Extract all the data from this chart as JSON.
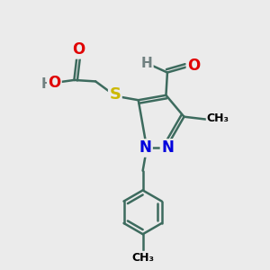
{
  "bg_color": "#ebebeb",
  "bond_color": "#3d6b5e",
  "bond_width": 1.8,
  "dbo": 0.12,
  "atom_colors": {
    "O": "#e00000",
    "N": "#0000dd",
    "S": "#ccb800",
    "H": "#708080",
    "C": "#000000"
  }
}
